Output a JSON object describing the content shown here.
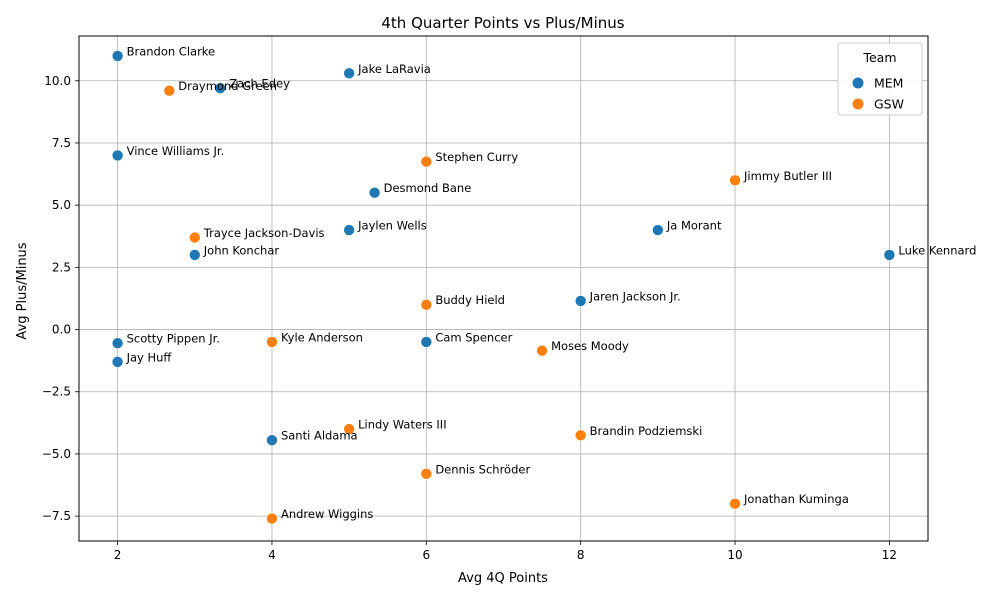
{
  "chart_data": {
    "type": "scatter",
    "title": "4th Quarter Points vs Plus/Minus",
    "xlabel": "Avg 4Q Points",
    "ylabel": "Avg Plus/Minus",
    "xlim": [
      1.5,
      12.5
    ],
    "ylim": [
      -8.5,
      11.8
    ],
    "xticks": [
      2,
      4,
      6,
      8,
      10,
      12
    ],
    "yticks": [
      -7.5,
      -5.0,
      -2.5,
      0.0,
      2.5,
      5.0,
      7.5,
      10.0
    ],
    "ytick_labels": [
      "−7.5",
      "−5.0",
      "−2.5",
      "0.0",
      "2.5",
      "5.0",
      "7.5",
      "10.0"
    ],
    "grid": true,
    "legend": {
      "title": "Team",
      "placement": "top-right",
      "entries": [
        {
          "name": "MEM",
          "color": "#1f77b4"
        },
        {
          "name": "GSW",
          "color": "#ff7f0e"
        }
      ]
    },
    "points": [
      {
        "label": "Brandon Clarke",
        "team": "MEM",
        "x": 2,
        "y": 11.0
      },
      {
        "label": "Jake LaRavia",
        "team": "MEM",
        "x": 5,
        "y": 10.3
      },
      {
        "label": "Zach Edey",
        "team": "MEM",
        "x": 3.33,
        "y": 9.7
      },
      {
        "label": "Draymond Green",
        "team": "GSW",
        "x": 2.67,
        "y": 9.6
      },
      {
        "label": "Vince Williams Jr.",
        "team": "MEM",
        "x": 2,
        "y": 7.0
      },
      {
        "label": "Stephen Curry",
        "team": "GSW",
        "x": 6,
        "y": 6.75
      },
      {
        "label": "Jimmy Butler III",
        "team": "GSW",
        "x": 10,
        "y": 6.0
      },
      {
        "label": "Desmond Bane",
        "team": "MEM",
        "x": 5.33,
        "y": 5.5
      },
      {
        "label": "Jaylen Wells",
        "team": "MEM",
        "x": 5,
        "y": 4.0
      },
      {
        "label": "Ja Morant",
        "team": "MEM",
        "x": 9,
        "y": 4.0
      },
      {
        "label": "Trayce Jackson-Davis",
        "team": "GSW",
        "x": 3,
        "y": 3.7
      },
      {
        "label": "John Konchar",
        "team": "MEM",
        "x": 3,
        "y": 3.0
      },
      {
        "label": "Luke Kennard",
        "team": "MEM",
        "x": 12,
        "y": 3.0
      },
      {
        "label": "Jaren Jackson Jr.",
        "team": "MEM",
        "x": 8,
        "y": 1.15
      },
      {
        "label": "Buddy Hield",
        "team": "GSW",
        "x": 6,
        "y": 1.0
      },
      {
        "label": "Scotty Pippen Jr.",
        "team": "MEM",
        "x": 2,
        "y": -0.55
      },
      {
        "label": "Kyle Anderson",
        "team": "GSW",
        "x": 4,
        "y": -0.5
      },
      {
        "label": "Cam Spencer",
        "team": "MEM",
        "x": 6,
        "y": -0.5
      },
      {
        "label": "Moses Moody",
        "team": "GSW",
        "x": 7.5,
        "y": -0.85
      },
      {
        "label": "Jay Huff",
        "team": "MEM",
        "x": 2,
        "y": -1.3
      },
      {
        "label": "Lindy Waters III",
        "team": "GSW",
        "x": 5,
        "y": -4.0
      },
      {
        "label": "Brandin Podziemski",
        "team": "GSW",
        "x": 8,
        "y": -4.25
      },
      {
        "label": "Santi Aldama",
        "team": "MEM",
        "x": 4,
        "y": -4.45
      },
      {
        "label": "Dennis Schröder",
        "team": "GSW",
        "x": 6,
        "y": -5.8
      },
      {
        "label": "Jonathan Kuminga",
        "team": "GSW",
        "x": 10,
        "y": -7.0
      },
      {
        "label": "Andrew Wiggins",
        "team": "GSW",
        "x": 4,
        "y": -7.6
      }
    ]
  }
}
